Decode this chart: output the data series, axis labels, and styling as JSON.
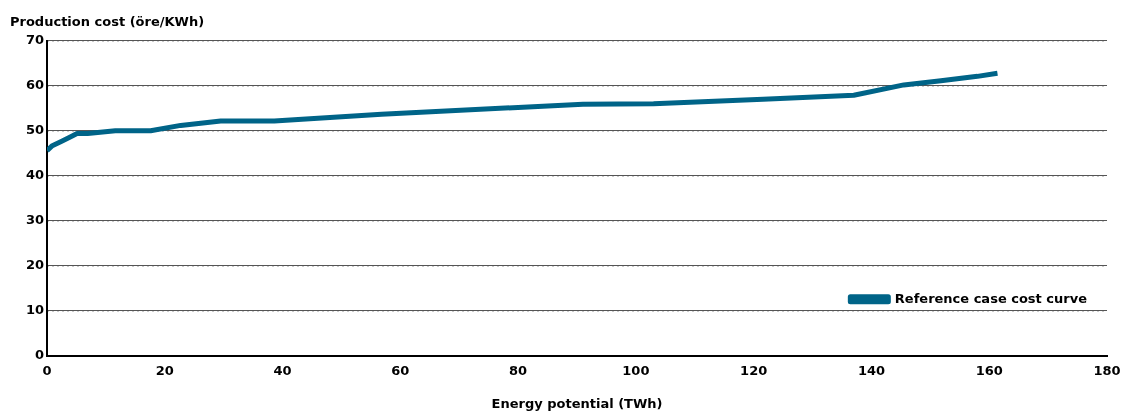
{
  "chart_data": {
    "type": "line",
    "ylabel": "Production cost (öre/KWh)",
    "xlabel": "Energy potential (TWh)",
    "xlim": [
      0,
      180
    ],
    "xticks": [
      0,
      20,
      40,
      60,
      80,
      100,
      120,
      140,
      160,
      180
    ],
    "ylim": [
      0,
      70
    ],
    "yticks": [
      0,
      10,
      20,
      30,
      40,
      50,
      60,
      70
    ],
    "grid": "y",
    "legend": "bottom right",
    "marker": "none",
    "line_style": "solid",
    "series": [
      {
        "name": "Reference case cost curve",
        "color": "#006488",
        "x": [
          0,
          0.9,
          2.5,
          4.2,
          5.1,
          6.9,
          11.6,
          17.6,
          22.7,
          29.5,
          38.6,
          56.8,
          91,
          103,
          121.6,
          137,
          145.5,
          151.8,
          158,
          161.4
        ],
        "values": [
          45.6,
          46.7,
          47.7,
          48.8,
          49.4,
          49.4,
          50,
          50,
          51.2,
          52.2,
          52.2,
          53.7,
          55.9,
          56,
          57,
          57.9,
          60.2,
          61.1,
          62.1,
          62.8
        ]
      }
    ]
  }
}
